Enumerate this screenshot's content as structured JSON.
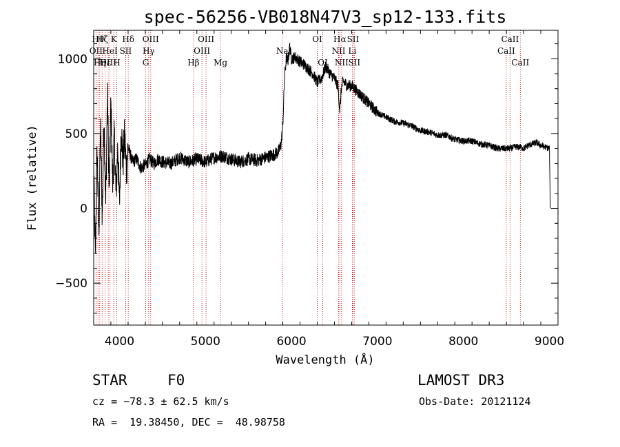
{
  "chart_data": {
    "type": "line",
    "title": "spec-56256-VB018N47V3_sp12-133.fits",
    "xlabel": "Wavelength (Å)",
    "ylabel": "Flux (relative)",
    "xlim": [
      3700,
      9100
    ],
    "ylim": [
      -780,
      1190
    ],
    "x_ticks": [
      4000,
      5000,
      6000,
      7000,
      8000,
      9000
    ],
    "x_tick_labels": [
      "4000",
      "5000",
      "6000",
      "7000",
      "8000",
      "9000"
    ],
    "y_ticks": [
      -500,
      0,
      500,
      1000
    ],
    "y_tick_labels": [
      "−500",
      "0",
      "500",
      "1000"
    ],
    "line_color": "#000000",
    "marker_color": "#c00000",
    "spectrum": {
      "x": [
        3700,
        3720,
        3740,
        3760,
        3780,
        3800,
        3820,
        3840,
        3860,
        3880,
        3900,
        3920,
        3940,
        3960,
        3980,
        4000,
        4020,
        4040,
        4060,
        4080,
        4100,
        4150,
        4200,
        4250,
        4300,
        4350,
        4400,
        4450,
        4500,
        4600,
        4700,
        4800,
        4860,
        4900,
        5000,
        5100,
        5200,
        5300,
        5400,
        5500,
        5600,
        5700,
        5750,
        5800,
        5850,
        5880,
        5900,
        5920,
        5940,
        5960,
        5980,
        6000,
        6050,
        6100,
        6150,
        6200,
        6250,
        6300,
        6350,
        6400,
        6450,
        6500,
        6540,
        6563,
        6580,
        6600,
        6650,
        6700,
        6750,
        6800,
        6900,
        7000,
        7100,
        7200,
        7300,
        7400,
        7500,
        7600,
        7700,
        7800,
        7900,
        8000,
        8100,
        8200,
        8300,
        8400,
        8498,
        8542,
        8600,
        8662,
        8700,
        8750,
        8800,
        8850,
        8900,
        8950,
        9000,
        9010
      ],
      "y": [
        250,
        -330,
        390,
        -160,
        560,
        -60,
        610,
        20,
        780,
        100,
        700,
        180,
        480,
        80,
        420,
        20,
        560,
        300,
        480,
        250,
        410,
        310,
        330,
        270,
        290,
        330,
        300,
        330,
        310,
        300,
        340,
        310,
        320,
        330,
        310,
        340,
        350,
        330,
        310,
        330,
        320,
        340,
        350,
        360,
        380,
        430,
        560,
        880,
        1000,
        990,
        1080,
        1000,
        1010,
        980,
        960,
        930,
        900,
        840,
        870,
        950,
        900,
        870,
        820,
        650,
        800,
        850,
        820,
        820,
        790,
        760,
        700,
        640,
        610,
        580,
        570,
        550,
        520,
        510,
        490,
        490,
        460,
        450,
        450,
        430,
        420,
        400,
        400,
        400,
        410,
        410,
        400,
        420,
        430,
        440,
        420,
        410,
        400,
        0
      ]
    },
    "lines": [
      {
        "wave": 3727,
        "label": "OII",
        "row": 2
      },
      {
        "wave": 3750,
        "label": "Hθ",
        "row": 1
      },
      {
        "wave": 3770,
        "label": "Hη",
        "row": 3
      },
      {
        "wave": 3798,
        "label": "Hζ",
        "row": 1
      },
      {
        "wave": 3835,
        "label": "Hε",
        "row": 3
      },
      {
        "wave": 3869,
        "label": "OIII",
        "row": 3
      },
      {
        "wave": 3889,
        "label": "HeI",
        "row": 2
      },
      {
        "wave": 3934,
        "label": "K",
        "row": 1
      },
      {
        "wave": 3969,
        "label": "H",
        "row": 3
      },
      {
        "wave": 4072,
        "label": "SII",
        "row": 2
      },
      {
        "wave": 4102,
        "label": "Hδ",
        "row": 1
      },
      {
        "wave": 4305,
        "label": "G",
        "row": 3
      },
      {
        "wave": 4340,
        "label": "Hγ",
        "row": 2
      },
      {
        "wave": 4363,
        "label": "OIII",
        "row": 1
      },
      {
        "wave": 4861,
        "label": "Hβ",
        "row": 3
      },
      {
        "wave": 4959,
        "label": "OIII",
        "row": 2
      },
      {
        "wave": 5007,
        "label": "OIII",
        "row": 1
      },
      {
        "wave": 5175,
        "label": "Mg",
        "row": 3
      },
      {
        "wave": 5893,
        "label": "Na",
        "row": 2
      },
      {
        "wave": 6300,
        "label": "OI",
        "row": 1
      },
      {
        "wave": 6364,
        "label": "OI",
        "row": 3
      },
      {
        "wave": 6548,
        "label": "NII",
        "row": 2
      },
      {
        "wave": 6563,
        "label": "Hα",
        "row": 1
      },
      {
        "wave": 6583,
        "label": "NII",
        "row": 3
      },
      {
        "wave": 6708,
        "label": "Li",
        "row": 2
      },
      {
        "wave": 6716,
        "label": "SII",
        "row": 1
      },
      {
        "wave": 6731,
        "label": "SII",
        "row": 3
      },
      {
        "wave": 8498,
        "label": "CaII",
        "row": 2
      },
      {
        "wave": 8542,
        "label": "CaII",
        "row": 1
      },
      {
        "wave": 8662,
        "label": "CaII",
        "row": 3
      }
    ]
  },
  "info": {
    "object_class": "STAR",
    "subclass": "F0",
    "survey": "LAMOST DR3",
    "redshift": "cz = −78.3 ± 62.5 km/s",
    "obs_date": "Obs-Date: 20121124",
    "coords": "RA =  19.38450, DEC =  48.98758"
  }
}
